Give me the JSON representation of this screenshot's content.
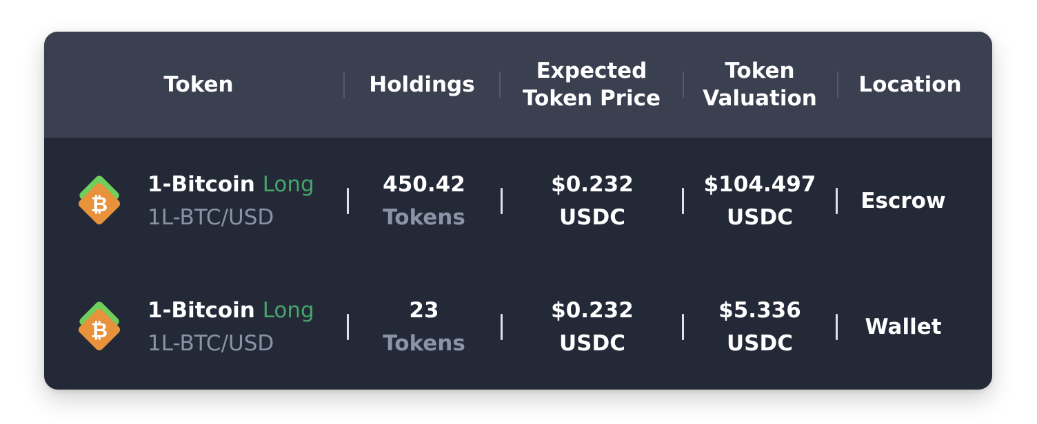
{
  "table": {
    "headers": {
      "token": [
        "Token"
      ],
      "holdings": [
        "Holdings"
      ],
      "expected_price": [
        "Expected",
        "Token Price"
      ],
      "valuation": [
        "Token",
        "Valuation"
      ],
      "location": [
        "Location"
      ]
    },
    "rows": [
      {
        "token_icon": "bitcoin-icon",
        "name": "1-Bitcoin",
        "direction": "Long",
        "symbol": "1L-BTC/USD",
        "holdings": "450.42",
        "holdings_unit": "Tokens",
        "price": "$0.232",
        "price_unit": "USDC",
        "valuation": "$104.497",
        "valuation_unit": "USDC",
        "location": "Escrow"
      },
      {
        "token_icon": "bitcoin-icon",
        "name": "1-Bitcoin",
        "direction": "Long",
        "symbol": "1L-BTC/USD",
        "holdings": "23",
        "holdings_unit": "Tokens",
        "price": "$0.232",
        "price_unit": "USDC",
        "valuation": "$5.336",
        "valuation_unit": "USDC",
        "location": "Wallet"
      }
    ]
  },
  "colors": {
    "header_bg": "#3b4051",
    "body_bg": "#242938",
    "long_green": "#47a56b",
    "muted_text": "#8c93a6",
    "icon_orange": "#e8923c",
    "icon_green": "#6fcf5c"
  }
}
